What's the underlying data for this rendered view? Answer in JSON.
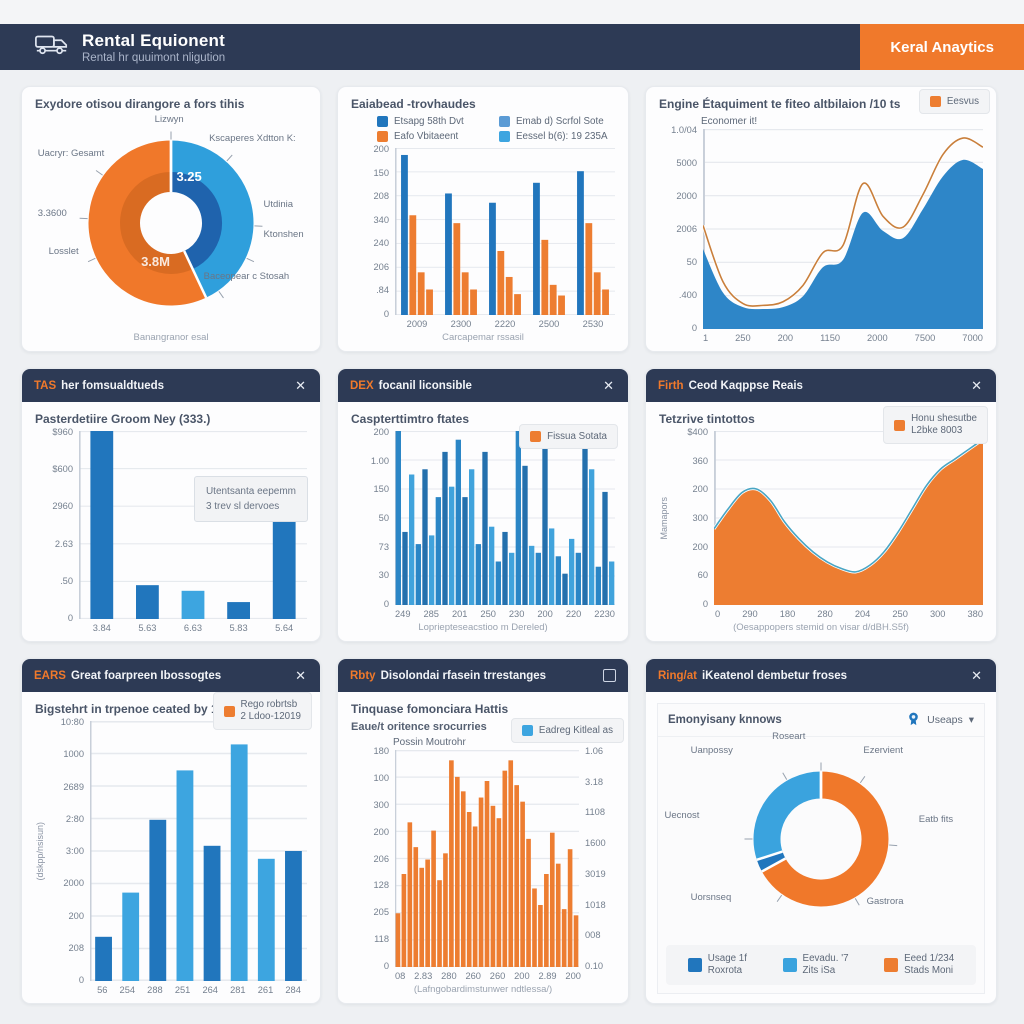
{
  "header": {
    "title": "Rental Equionent",
    "subtitle": "Rental hr quuimont nligution",
    "brand": "Keral Anaytics"
  },
  "icons": {
    "close": "✕",
    "chevron": "▾"
  },
  "colors": {
    "navy": "#2d3a55",
    "orange": "#f0792b",
    "bar_orange": "#ed7d31",
    "blue_dark": "#2176bd",
    "blue_light": "#3da5e0",
    "area_blue": "#2e86c8",
    "line_orange": "#c97f3c",
    "line_teal": "#4aa5c4",
    "bg": "#eef0f3"
  },
  "cards": {
    "c1": {
      "title": "Exydore otisou dirangore a fors tihis",
      "caption": "Banangranor esal"
    },
    "c2": {
      "title": "Eaiabead -trovhaudes",
      "xlabel": "Carcapemar rssasil"
    },
    "c3": {
      "title": "Engine Étaquiment te fiteo altbilaion /10 ts",
      "axis_note": "Economer it!"
    },
    "c4": {
      "tag": "TAS",
      "header": "her fomsualdtueds",
      "title": "Pasterdetiire Groom Ney (333.)",
      "tooltip1": "Utentsanta eepemm",
      "tooltip2": "3 trev sl dervoes"
    },
    "c5": {
      "tag": "DEX",
      "header": "focanil liconsible",
      "title": "Caspterttimtro ftates",
      "xlabel": "Lopriepteseacstioo m Dereled)"
    },
    "c6": {
      "tag": "Firth",
      "header": "Ceod Kaqppse Reais",
      "title": "Tetzrive tintottos",
      "ylabel": "Mamapors",
      "xlabel": "(Oesappopers stemid on visar d/dBH.S5f)"
    },
    "c7": {
      "tag": "EARS",
      "header": "Great foarpreen Ibossogtes",
      "title": "Bigstehrt in trpenoe ceated by 12:11",
      "ylabel": "(dskpp/nsisun)"
    },
    "c8": {
      "tag": "Rbty",
      "header": "Disolondai rfasein trrestanges",
      "title": "Tinquase fomonciara Hattis",
      "subtitle": "Eaue/t oritence srocurries",
      "axis_note": "Possin Moutrohr",
      "xlabel": "(Lafngobardimstunwer ndtlessa/)"
    },
    "c9": {
      "tag": "Ring/at",
      "header": "iKeatenol dembetur froses",
      "panel_title": "Emonyisany knnows",
      "dropdown": "Useaps"
    }
  },
  "chart_data": [
    {
      "type": "pie",
      "title": "Exydore otisou dirangore a fors tihis",
      "slices": [
        {
          "label": "Utdinia",
          "value": 43,
          "color": "#2f9fdc",
          "inner": "#1f63ad"
        },
        {
          "label": "Losslet",
          "value": 57,
          "color": "#f0782a",
          "inner": "#d96b22"
        }
      ],
      "center_values": [
        "3.25",
        "3.8M"
      ],
      "callouts": [
        "Lizwyn",
        "Uacryr: Gesamt",
        "Kscaperes Xdtton K:",
        "3.3600",
        "Utdinia",
        "Ktonshen",
        "Losslet",
        "Baceopear c Stosah"
      ]
    },
    {
      "type": "bar",
      "categories": [
        "2009",
        "2300",
        "2220",
        "2500",
        "2530"
      ],
      "ymax": 360,
      "y_ticks": [
        "200",
        "150",
        "208",
        "340",
        "240",
        "206",
        ".84",
        "0"
      ],
      "series": [
        {
          "name": "Etsapg 58th Dvt",
          "color": "#2176bd",
          "values": [
            345,
            262,
            242,
            285,
            310
          ]
        },
        {
          "name": "Eafo Vbitaeent",
          "color": "#ed7d31",
          "values": [
            215,
            198,
            138,
            162,
            198
          ]
        },
        {
          "name": "orange-2",
          "color": "#ed7d31",
          "values": [
            92,
            92,
            82,
            65,
            92
          ]
        },
        {
          "name": "orange-3",
          "color": "#ed7d31",
          "values": [
            55,
            55,
            45,
            42,
            55
          ]
        }
      ],
      "legend": [
        {
          "label": "Etsapg 58th Dvt",
          "color": "#2176bd"
        },
        {
          "label": "Emab d) Scrfol Sote",
          "color": "#5b9bd5"
        },
        {
          "label": "Eafo Vbitaeent",
          "color": "#ed7d31"
        },
        {
          "label": "Eessel b(6): 19 235A",
          "color": "#3da5e0"
        }
      ],
      "xlabel": "Carcapemar rssasil"
    },
    {
      "type": "area",
      "ymax": 110,
      "y_ticks": [
        "1.0/04",
        "5000",
        "2000",
        "2006",
        "50",
        ".400",
        "0"
      ],
      "x_ticks": [
        "1",
        "250",
        "200",
        "1150",
        "2000",
        "7500",
        "7000"
      ],
      "series": [
        {
          "name": "blue-area",
          "fill": "#2e86c8",
          "values": [
            44,
            20,
            12,
            11,
            12,
            18,
            34,
            38,
            64,
            54,
            50,
            66,
            84,
            93,
            88
          ]
        },
        {
          "name": "Eesvus",
          "line": "#c97f3c",
          "values": [
            57,
            26,
            14,
            13,
            15,
            24,
            42,
            46,
            80,
            62,
            56,
            74,
            96,
            105,
            100
          ]
        }
      ],
      "legend": [
        {
          "label": "Eesvus",
          "color": "#ed7d31"
        }
      ]
    },
    {
      "type": "bar",
      "categories": [
        "3.84",
        "5.63",
        "6.63",
        "5.83",
        "5.64"
      ],
      "ymax": 100,
      "y_ticks": [
        "$960",
        "$600",
        "2960",
        "2.63",
        ".50",
        "0"
      ],
      "values": [
        100,
        18,
        15,
        9,
        57
      ],
      "colors": [
        "#2176bd",
        "#2176bd",
        "#3da5e0",
        "#2176bd",
        "#2176bd"
      ]
    },
    {
      "type": "bar",
      "ymax": 100,
      "y_ticks": [
        "200",
        "1.00",
        "150",
        "50",
        "73",
        "30",
        "0"
      ],
      "x_ticks": [
        "249",
        "285",
        "201",
        "250",
        "230",
        "200",
        "220",
        "2230"
      ],
      "values": [
        100,
        42,
        75,
        35,
        78,
        40,
        62,
        88,
        68,
        95,
        62,
        78,
        35,
        88,
        45,
        25,
        42,
        30,
        100,
        80,
        34,
        30,
        98,
        44,
        28,
        18,
        38,
        30,
        95,
        78,
        22,
        65,
        25
      ],
      "bar_colors": [
        "#2b86c6",
        "#2470ad",
        "#41a3dc"
      ],
      "legend": [
        {
          "label": "Fissua Sotata",
          "color": "#ed7d31"
        }
      ],
      "xlabel": "Lopriepteseacstioo m Dereled)"
    },
    {
      "type": "area",
      "ymax": 105,
      "y_ticks": [
        "$400",
        "360",
        "200",
        "300",
        "200",
        "60",
        "0"
      ],
      "x_ticks": [
        "0",
        "290",
        "180",
        "280",
        "204",
        "250",
        "300",
        "380"
      ],
      "series": [
        {
          "name": "Honu shesutbe L2bke 8003",
          "fill": "#ed7d31",
          "line": "#4aa5c4",
          "values": [
            46,
            58,
            68,
            70,
            63,
            50,
            40,
            32,
            26,
            22,
            20,
            24,
            32,
            44,
            58,
            72,
            82,
            88,
            94,
            100
          ]
        }
      ],
      "legend": [
        {
          "label": "Honu shesutbe",
          "label2": "L2bke 8003",
          "color": "#ed7d31"
        }
      ],
      "ylabel": "Mamapors",
      "xlabel": "(Oesappopers stemid on visar d/dBH.S5f)"
    },
    {
      "type": "bar",
      "categories": [
        "56",
        "254",
        "288",
        "251",
        "264",
        "281",
        "261",
        "284"
      ],
      "ymax": 100,
      "y_ticks": [
        "10:80",
        "1000",
        "2689",
        "2:80",
        "3:00",
        "2000",
        "200",
        "208",
        "0"
      ],
      "values": [
        17,
        34,
        62,
        81,
        52,
        91,
        47,
        50
      ],
      "colors": [
        "#2176bd",
        "#3da5e0",
        "#2176bd",
        "#3da5e0",
        "#2176bd",
        "#3da5e0",
        "#3da5e0",
        "#2176bd"
      ],
      "legend": [
        {
          "label": "Rego robrtsb",
          "label2": "2 Ldoo-12019",
          "color": "#ed7d31"
        }
      ],
      "ylabel": "(dskpp/nsisun)"
    },
    {
      "type": "bar",
      "ymax": 105,
      "y_ticks": [
        "180",
        "100",
        "300",
        "200",
        "206",
        "128",
        "205",
        "118",
        "0"
      ],
      "y_ticks_right": [
        "1.06",
        "3.18",
        "1108",
        "1600",
        "3019",
        "1018",
        "008",
        "0.10"
      ],
      "x_ticks": [
        "08",
        "2.83",
        "280",
        "260",
        "260",
        "200",
        "2.89",
        "200"
      ],
      "values": [
        26,
        45,
        70,
        58,
        48,
        52,
        66,
        42,
        55,
        100,
        92,
        85,
        75,
        68,
        82,
        90,
        78,
        72,
        95,
        100,
        88,
        80,
        62,
        38,
        30,
        45,
        65,
        50,
        28,
        57,
        25
      ],
      "bar_colors": [
        "#ed7d31"
      ],
      "legend": [
        {
          "label": "Eadreg Kitleal as",
          "color": "#3da5e0"
        }
      ],
      "xlabel": "(Lafngobardimstunwer ndtlessa/)"
    },
    {
      "type": "pie",
      "slices": [
        {
          "label": "Eatb fits",
          "value": 67,
          "color": "#f0782a"
        },
        {
          "label": "Uecnost",
          "value": 3,
          "color": "#2176bd"
        },
        {
          "label": "Uanpossy",
          "value": 30,
          "color": "#3aa3de"
        }
      ],
      "callouts": [
        "Roseart",
        "Uanpossy",
        "Ezervient",
        "Uecnost",
        "Eatb fits",
        "Uorsnseq",
        "Gastrora"
      ],
      "legend": [
        {
          "label": "Usage 1f",
          "label2": "Roxrota",
          "color": "#2176bd"
        },
        {
          "label": "Eevadu. '7",
          "label2": "Zits iSa",
          "color": "#3aa3de"
        },
        {
          "label": "Eeed 1/234",
          "label2": "Stads Moni",
          "color": "#ed7d31"
        }
      ]
    }
  ]
}
